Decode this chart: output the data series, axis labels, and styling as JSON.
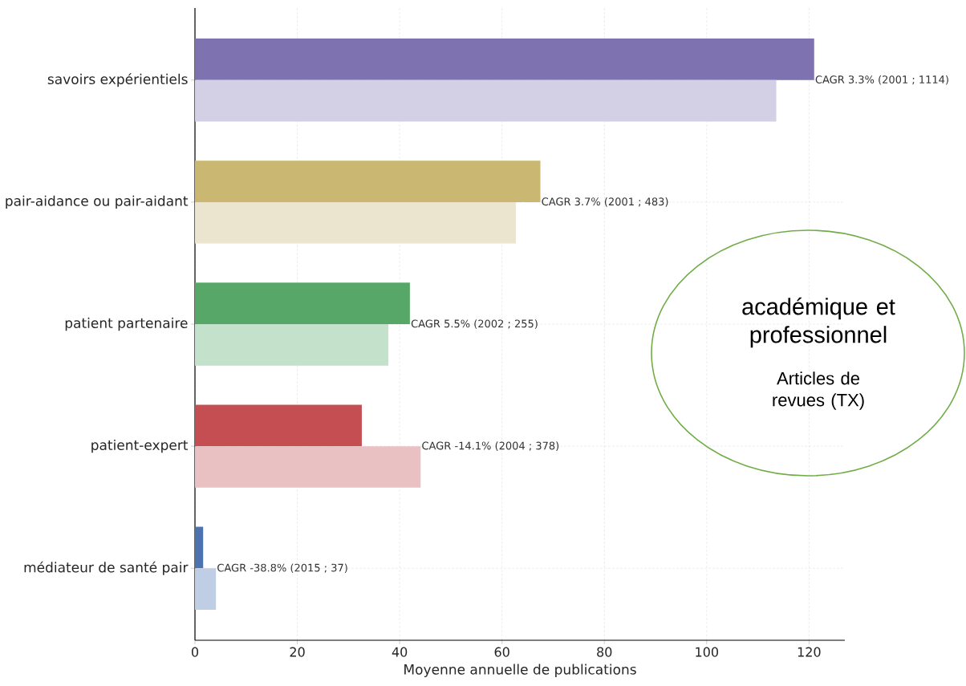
{
  "chart_data": {
    "type": "bar",
    "orientation": "horizontal",
    "xlabel": "Moyenne annuelle de publications",
    "categories": [
      "savoirs expérientiels",
      "pair-aidance ou pair-aidant",
      "patient partenaire",
      "patient-expert",
      "médiateur de santé pair"
    ],
    "series": [
      {
        "colors": [
          "#7f72b0",
          "#cab872",
          "#57a868",
          "#c44e52",
          "#4c72b0"
        ],
        "values": [
          121,
          67.5,
          42,
          32.6,
          1.6
        ]
      },
      {
        "colors": [
          "#d3cfe5",
          "#ebe5cf",
          "#c3e1cb",
          "#e9c1c3",
          "#bfcde5"
        ],
        "values": [
          113.6,
          62.7,
          37.8,
          44.1,
          4.1
        ]
      }
    ],
    "xlim": [
      0,
      127
    ],
    "xticks": [
      0,
      20,
      40,
      60,
      80,
      100,
      120
    ],
    "grid": true,
    "annotations": [
      {
        "text": "CAGR 3.3%  (2001 ; 1114)",
        "x": 121,
        "y": "savoirs expérientiels"
      },
      {
        "text": "CAGR 3.7%  (2001 ; 483)",
        "x": 67.5,
        "y": "pair-aidance ou pair-aidant"
      },
      {
        "text": "CAGR 5.5%  (2002 ; 255)",
        "x": 42,
        "y": "patient partenaire"
      },
      {
        "text": "CAGR -14.1%  (2004 ; 378)",
        "x": 44.1,
        "y": "patient-expert"
      },
      {
        "text": "CAGR -38.8%  (2015 ; 37)",
        "x": 4.1,
        "y": "médiateur de santé pair"
      },
      "académique et professionnel",
      "Articles de revues (TX)"
    ]
  }
}
